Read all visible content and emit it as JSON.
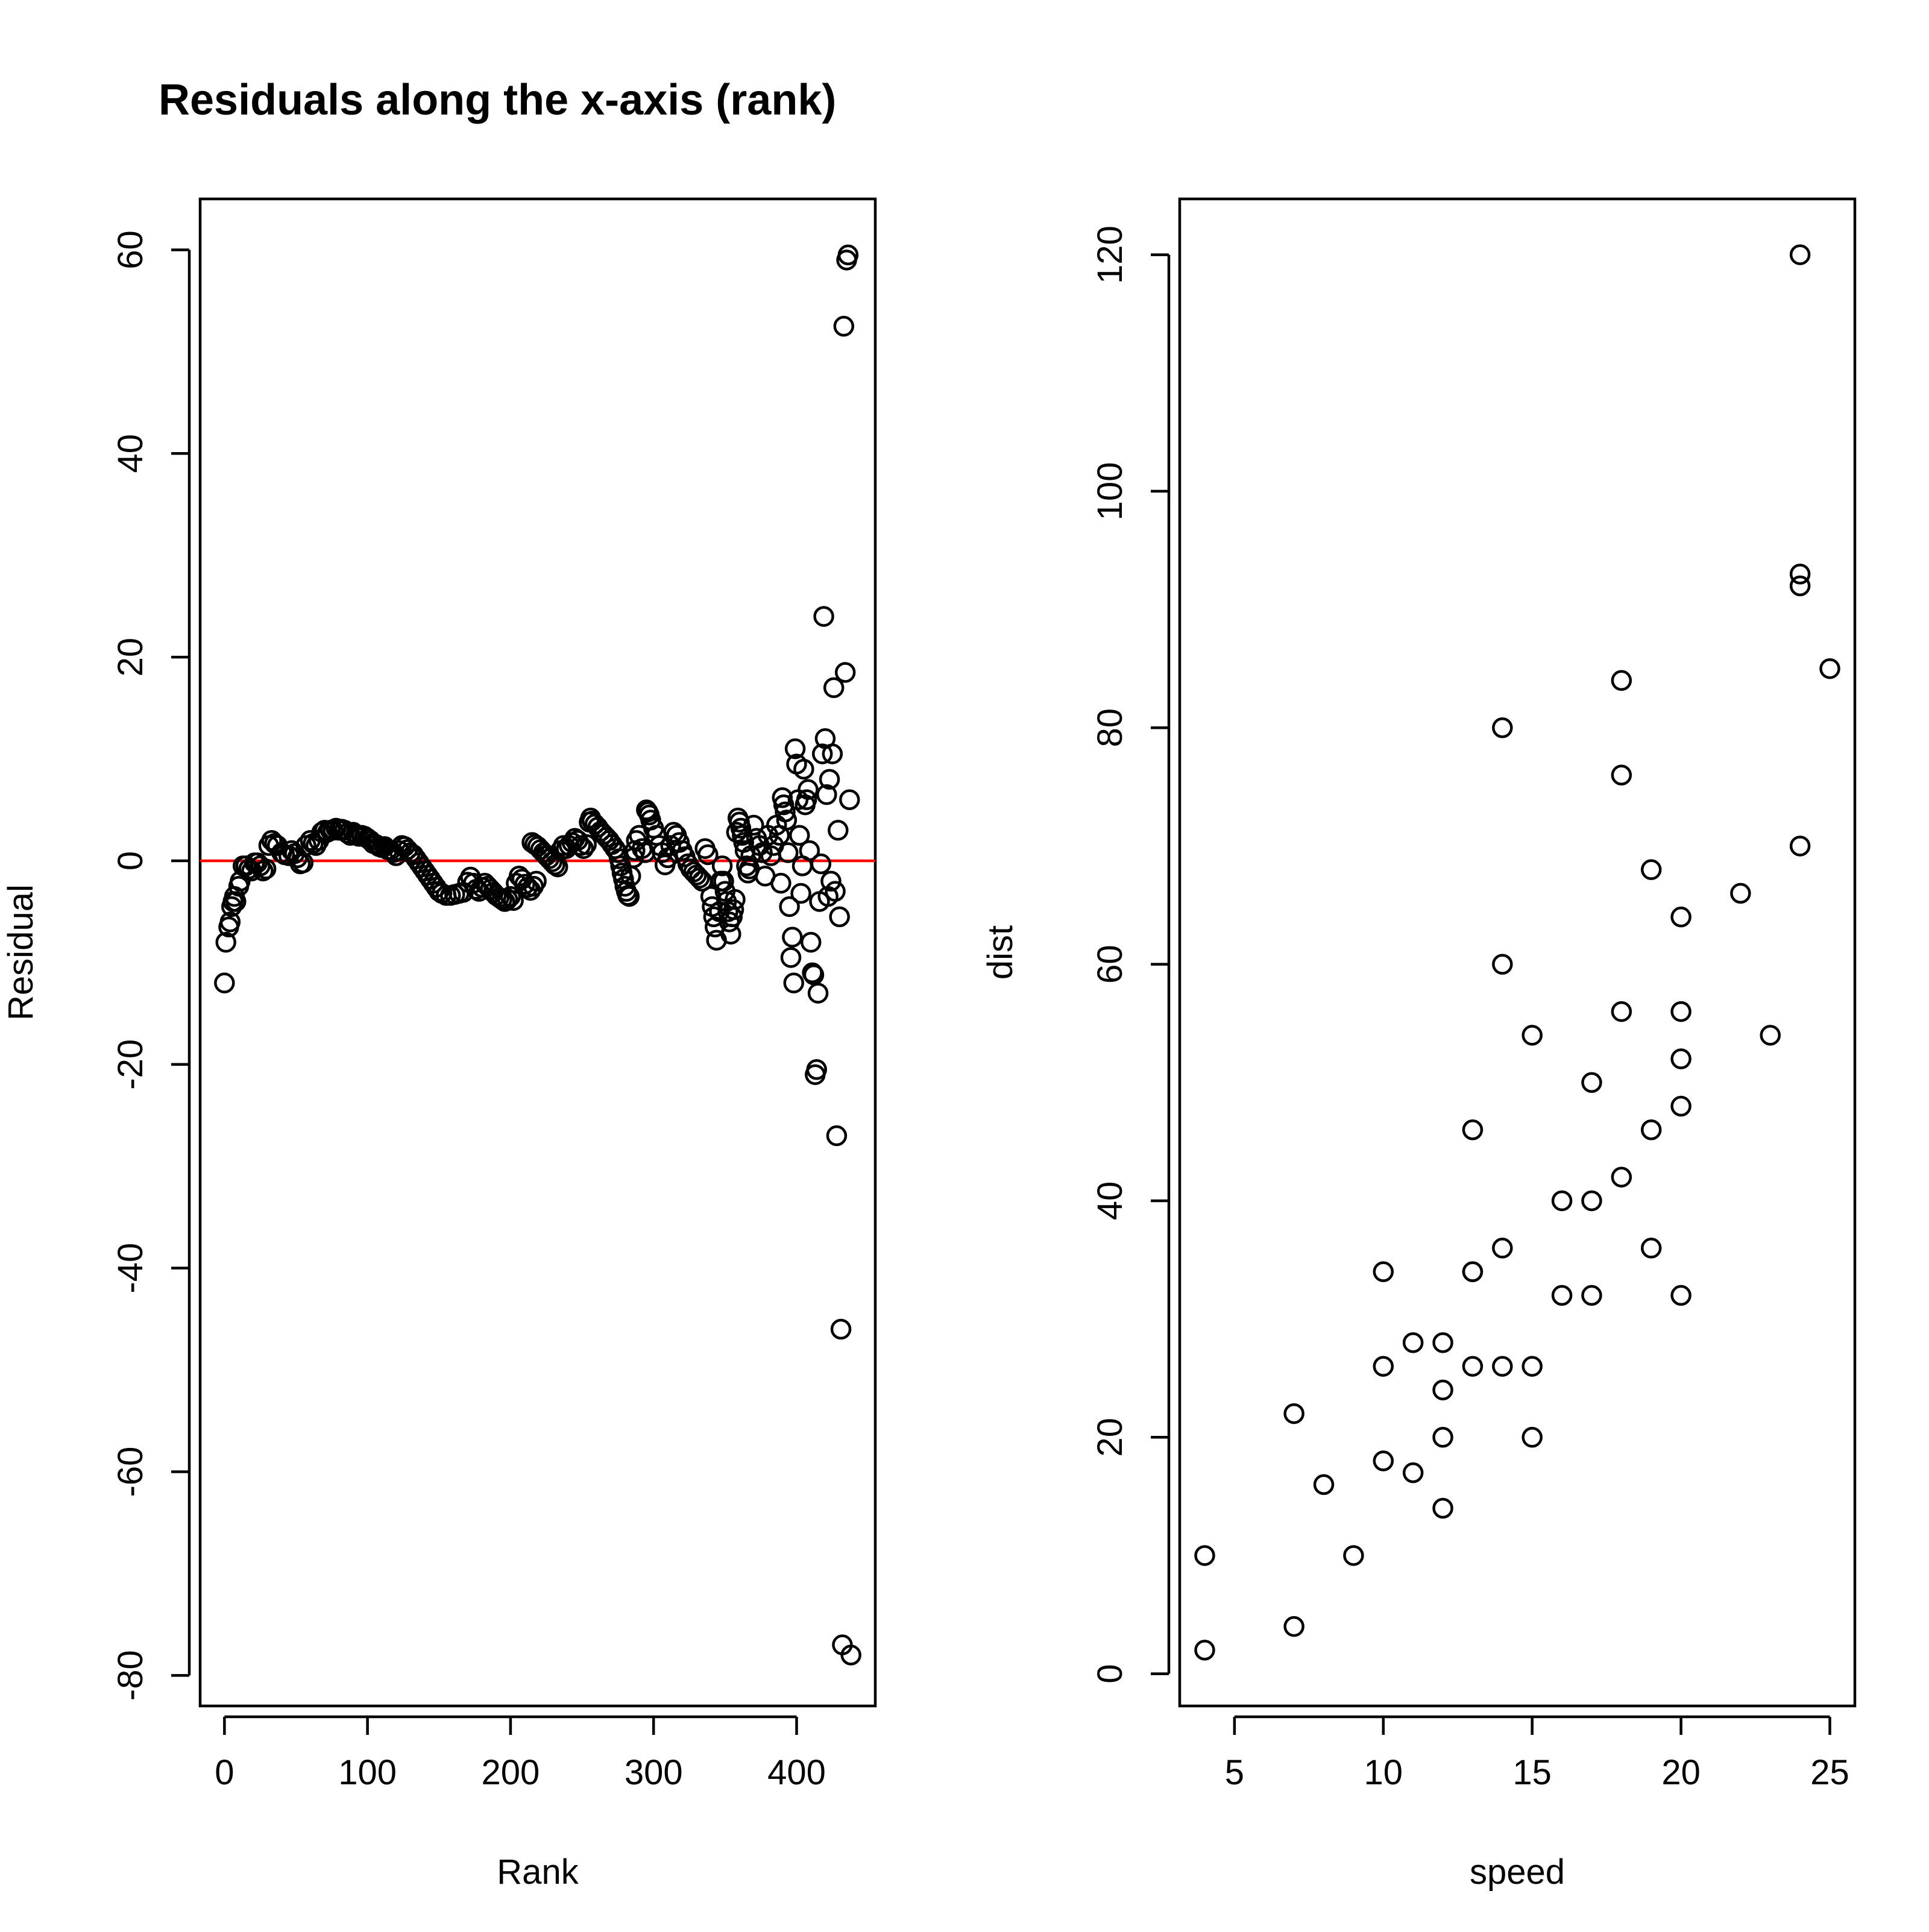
{
  "chart_data": [
    {
      "type": "scatter",
      "title": "Residuals along the x-axis (rank)",
      "xlabel": "Rank",
      "ylabel": "Residual",
      "xlim": [
        -17,
        455
      ],
      "ylim": [
        -83,
        65
      ],
      "xticks": [
        0,
        100,
        200,
        300,
        400
      ],
      "yticks": [
        -80,
        -60,
        -40,
        -20,
        0,
        20,
        40,
        60
      ],
      "grid": false,
      "reference_line": {
        "orientation": "horizontal",
        "y": 0,
        "color": "#ff0000"
      },
      "point_color": "#000000",
      "points": [
        [
          0,
          -12
        ],
        [
          1,
          -8
        ],
        [
          3,
          -6.5
        ],
        [
          4,
          -6
        ],
        [
          5,
          -4.5
        ],
        [
          6,
          -4
        ],
        [
          7,
          -3.5
        ],
        [
          8,
          -4
        ],
        [
          10,
          -2.5
        ],
        [
          11,
          -2
        ],
        [
          13,
          -0.5
        ],
        [
          15,
          -0.5
        ],
        [
          17,
          -0.8
        ],
        [
          19,
          -1
        ],
        [
          21,
          -0.2
        ],
        [
          23,
          -0.2
        ],
        [
          25,
          -0.5
        ],
        [
          27,
          -1
        ],
        [
          29,
          -0.8
        ],
        [
          31,
          1.5
        ],
        [
          33,
          2
        ],
        [
          35,
          1.7
        ],
        [
          37,
          1.5
        ],
        [
          40,
          0.8
        ],
        [
          42,
          0.6
        ],
        [
          45,
          0.5
        ],
        [
          47,
          1
        ],
        [
          49,
          0.7
        ],
        [
          51,
          0.3
        ],
        [
          53,
          -0.3
        ],
        [
          55,
          -0.2
        ],
        [
          57,
          1.5
        ],
        [
          60,
          2
        ],
        [
          62,
          1.7
        ],
        [
          64,
          1.5
        ],
        [
          66,
          2
        ],
        [
          68,
          2.8
        ],
        [
          70,
          3
        ],
        [
          72,
          2.8
        ],
        [
          74,
          3
        ],
        [
          76,
          3
        ],
        [
          78,
          3.2
        ],
        [
          80,
          3
        ],
        [
          82,
          3.1
        ],
        [
          84,
          3
        ],
        [
          86,
          2.7
        ],
        [
          88,
          2.5
        ],
        [
          90,
          2.8
        ],
        [
          92,
          2.6
        ],
        [
          94,
          2.4
        ],
        [
          96,
          2.5
        ],
        [
          98,
          2.4
        ],
        [
          100,
          2.2
        ],
        [
          102,
          2
        ],
        [
          104,
          1.7
        ],
        [
          106,
          1.6
        ],
        [
          108,
          1.4
        ],
        [
          110,
          1.3
        ],
        [
          112,
          1.4
        ],
        [
          114,
          1.1
        ],
        [
          116,
          1
        ],
        [
          118,
          0.8
        ],
        [
          120,
          0.5
        ],
        [
          122,
          1
        ],
        [
          124,
          1.5
        ],
        [
          126,
          1.4
        ],
        [
          128,
          1.1
        ],
        [
          130,
          0.8
        ],
        [
          132,
          0.6
        ],
        [
          134,
          0.2
        ],
        [
          136,
          -0.2
        ],
        [
          138,
          -0.6
        ],
        [
          140,
          -1
        ],
        [
          142,
          -1.4
        ],
        [
          144,
          -1.8
        ],
        [
          146,
          -2.2
        ],
        [
          148,
          -2.6
        ],
        [
          150,
          -3
        ],
        [
          152,
          -3.2
        ],
        [
          155,
          -3.4
        ],
        [
          158,
          -3.4
        ],
        [
          161,
          -3.3
        ],
        [
          164,
          -3.2
        ],
        [
          167,
          -3.1
        ],
        [
          170,
          -2.1
        ],
        [
          172,
          -1.6
        ],
        [
          174,
          -2.2
        ],
        [
          176,
          -2.8
        ],
        [
          178,
          -3
        ],
        [
          180,
          -2.6
        ],
        [
          182,
          -2.2
        ],
        [
          184,
          -2.5
        ],
        [
          186,
          -2.8
        ],
        [
          188,
          -3.1
        ],
        [
          190,
          -3.4
        ],
        [
          192,
          -3.6
        ],
        [
          194,
          -3.8
        ],
        [
          196,
          -4
        ],
        [
          198,
          -3.8
        ],
        [
          200,
          -3.5
        ],
        [
          202,
          -3.9
        ],
        [
          204,
          -2.2
        ],
        [
          206,
          -1.5
        ],
        [
          208,
          -1.8
        ],
        [
          210,
          -2.3
        ],
        [
          212,
          -2.6
        ],
        [
          214,
          -2.9
        ],
        [
          216,
          -2.5
        ],
        [
          218,
          -2
        ],
        [
          215,
          1.8
        ],
        [
          217,
          1.6
        ],
        [
          219,
          1.4
        ],
        [
          221,
          1.1
        ],
        [
          223,
          0.8
        ],
        [
          225,
          0.5
        ],
        [
          227,
          0.2
        ],
        [
          229,
          -0.1
        ],
        [
          231,
          -0.4
        ],
        [
          233,
          -0.6
        ],
        [
          235,
          1
        ],
        [
          237,
          1.5
        ],
        [
          239,
          1.2
        ],
        [
          241,
          1.5
        ],
        [
          243,
          1.8
        ],
        [
          245,
          2.2
        ],
        [
          247,
          2
        ],
        [
          249,
          1.5
        ],
        [
          251,
          1.2
        ],
        [
          253,
          1.6
        ],
        [
          255,
          3.8
        ],
        [
          256,
          4.2
        ],
        [
          257,
          3.9
        ],
        [
          259,
          3.6
        ],
        [
          261,
          3.3
        ],
        [
          263,
          2.9
        ],
        [
          265,
          2.6
        ],
        [
          267,
          2.3
        ],
        [
          269,
          2
        ],
        [
          271,
          1.6
        ],
        [
          273,
          1.2
        ],
        [
          275,
          0.8
        ],
        [
          276,
          0.2
        ],
        [
          277,
          -0.5
        ],
        [
          278,
          -1.2
        ],
        [
          279,
          -1.8
        ],
        [
          280,
          -2.5
        ],
        [
          281,
          -3
        ],
        [
          282,
          -3.4
        ],
        [
          283,
          -3.5
        ],
        [
          284,
          -1.5
        ],
        [
          286,
          0.3
        ],
        [
          287,
          1
        ],
        [
          288,
          2
        ],
        [
          290,
          2.5
        ],
        [
          292,
          1.2
        ],
        [
          294,
          0.8
        ],
        [
          295,
          5
        ],
        [
          296,
          4.8
        ],
        [
          297,
          4.5
        ],
        [
          298,
          4
        ],
        [
          300,
          3.2
        ],
        [
          302,
          2.5
        ],
        [
          304,
          1.5
        ],
        [
          306,
          0.8
        ],
        [
          308,
          -0.4
        ],
        [
          310,
          0.3
        ],
        [
          312,
          1.5
        ],
        [
          314,
          2.8
        ],
        [
          316,
          2.5
        ],
        [
          318,
          1.8
        ],
        [
          320,
          1
        ],
        [
          322,
          0.4
        ],
        [
          324,
          -0.3
        ],
        [
          326,
          -0.8
        ],
        [
          328,
          -1.1
        ],
        [
          330,
          -1.4
        ],
        [
          332,
          -1.7
        ],
        [
          334,
          -2
        ],
        [
          336,
          1.2
        ],
        [
          338,
          0.6
        ],
        [
          340,
          -3.5
        ],
        [
          341,
          -4.5
        ],
        [
          342,
          -5.5
        ],
        [
          343,
          -6.5
        ],
        [
          344,
          -7.8
        ],
        [
          346,
          -5
        ],
        [
          347,
          -2
        ],
        [
          348,
          -0.5
        ],
        [
          349,
          -2
        ],
        [
          350,
          -3
        ],
        [
          351,
          -4
        ],
        [
          352,
          -5
        ],
        [
          353,
          -6
        ],
        [
          354,
          -7.2
        ],
        [
          355,
          -5.5
        ],
        [
          356,
          -4.8
        ],
        [
          357,
          -3.8
        ],
        [
          358,
          2.8
        ],
        [
          359,
          4.2
        ],
        [
          360,
          3.8
        ],
        [
          361,
          3.2
        ],
        [
          362,
          2.5
        ],
        [
          363,
          1.8
        ],
        [
          364,
          1
        ],
        [
          365,
          -0.5
        ],
        [
          366,
          -1.2
        ],
        [
          367,
          -0.8
        ],
        [
          368,
          0.5
        ],
        [
          370,
          3.5
        ],
        [
          372,
          2.2
        ],
        [
          374,
          1.5
        ],
        [
          376,
          0.8
        ],
        [
          378,
          -1.5
        ],
        [
          380,
          2.5
        ],
        [
          382,
          0.5
        ],
        [
          384,
          1.5
        ],
        [
          386,
          3.5
        ],
        [
          388,
          2.5
        ],
        [
          389,
          -2.2
        ],
        [
          390,
          6.2
        ],
        [
          391,
          5.5
        ],
        [
          392,
          4.8
        ],
        [
          393,
          4
        ],
        [
          394,
          0.8
        ],
        [
          395,
          -4.5
        ],
        [
          396,
          -9.5
        ],
        [
          397,
          -7.5
        ],
        [
          398,
          -12
        ],
        [
          399,
          11
        ],
        [
          400,
          9.5
        ],
        [
          401,
          6
        ],
        [
          402,
          2.5
        ],
        [
          403,
          -3.2
        ],
        [
          404,
          -0.5
        ],
        [
          405,
          9
        ],
        [
          406,
          5.5
        ],
        [
          407,
          6
        ],
        [
          408,
          7
        ],
        [
          409,
          1
        ],
        [
          410,
          -8
        ],
        [
          411,
          -11
        ],
        [
          412,
          -11.2
        ],
        [
          413,
          -21
        ],
        [
          414,
          -20.5
        ],
        [
          415,
          -13
        ],
        [
          416,
          -4
        ],
        [
          417,
          -0.3
        ],
        [
          418,
          10.5
        ],
        [
          419,
          24
        ],
        [
          420,
          12
        ],
        [
          421,
          6.5
        ],
        [
          422,
          -3.5
        ],
        [
          423,
          8
        ],
        [
          424,
          -2
        ],
        [
          425,
          10.5
        ],
        [
          426,
          17
        ],
        [
          427,
          -3
        ],
        [
          428,
          -27
        ],
        [
          429,
          3
        ],
        [
          430,
          -5.5
        ],
        [
          431,
          -46
        ],
        [
          432,
          -77
        ],
        [
          433,
          52.5
        ],
        [
          434,
          18.5
        ],
        [
          435,
          59
        ],
        [
          436,
          59.5
        ],
        [
          437,
          6
        ],
        [
          438,
          -78
        ]
      ]
    },
    {
      "type": "scatter",
      "title": "",
      "xlabel": "speed",
      "ylabel": "dist",
      "xlim": [
        3.16,
        25.84
      ],
      "ylim": [
        -2.72,
        124.72
      ],
      "xticks": [
        5,
        10,
        15,
        20,
        25
      ],
      "yticks": [
        0,
        20,
        40,
        60,
        80,
        100,
        120
      ],
      "grid": false,
      "point_color": "#000000",
      "points": [
        [
          4,
          2
        ],
        [
          4,
          10
        ],
        [
          7,
          4
        ],
        [
          7,
          22
        ],
        [
          8,
          16
        ],
        [
          9,
          10
        ],
        [
          10,
          18
        ],
        [
          10,
          26
        ],
        [
          10,
          34
        ],
        [
          11,
          17
        ],
        [
          11,
          28
        ],
        [
          12,
          14
        ],
        [
          12,
          20
        ],
        [
          12,
          24
        ],
        [
          12,
          28
        ],
        [
          13,
          26
        ],
        [
          13,
          34
        ],
        [
          13,
          34
        ],
        [
          13,
          46
        ],
        [
          14,
          26
        ],
        [
          14,
          36
        ],
        [
          14,
          60
        ],
        [
          14,
          80
        ],
        [
          15,
          20
        ],
        [
          15,
          26
        ],
        [
          15,
          54
        ],
        [
          16,
          32
        ],
        [
          16,
          40
        ],
        [
          17,
          32
        ],
        [
          17,
          40
        ],
        [
          17,
          50
        ],
        [
          18,
          42
        ],
        [
          18,
          56
        ],
        [
          18,
          76
        ],
        [
          18,
          84
        ],
        [
          19,
          36
        ],
        [
          19,
          46
        ],
        [
          19,
          68
        ],
        [
          20,
          32
        ],
        [
          20,
          48
        ],
        [
          20,
          52
        ],
        [
          20,
          56
        ],
        [
          20,
          64
        ],
        [
          22,
          66
        ],
        [
          23,
          54
        ],
        [
          24,
          70
        ],
        [
          24,
          92
        ],
        [
          24,
          93
        ],
        [
          24,
          120
        ],
        [
          25,
          85
        ]
      ]
    }
  ]
}
